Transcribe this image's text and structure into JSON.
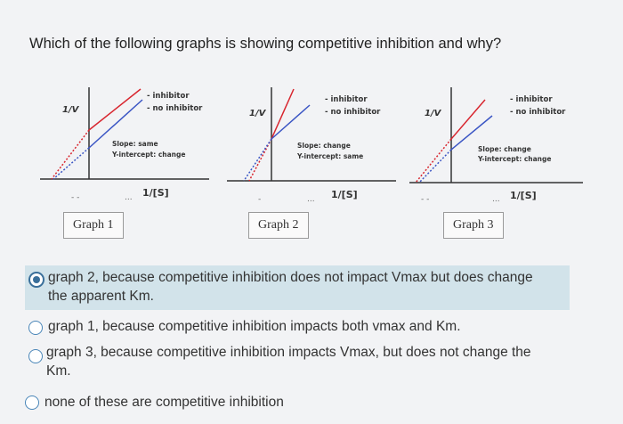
{
  "question": "Which of the following graphs is showing competitive inhibition and why?",
  "colors": {
    "inhibitor": "#d8252e",
    "no_inhibitor": "#3a55c4",
    "selected_bg": "#d2e3ea",
    "radio": "#3a6f9a"
  },
  "graphs": [
    {
      "y_axis": "1/V",
      "legend_inhibitor": "- inhibitor",
      "legend_no_inhibitor": "- no inhibitor",
      "note_line1": "Slope: same",
      "note_line2": "Y-intercept: change",
      "x_axis": "1/[S]",
      "label": "Graph 1"
    },
    {
      "y_axis": "1/V",
      "legend_inhibitor": "- inhibitor",
      "legend_no_inhibitor": "- no inhibitor",
      "note_line1": "Slope: change",
      "note_line2": "Y-intercept: same",
      "x_axis": "1/[S]",
      "label": "Graph 2"
    },
    {
      "y_axis": "1/V",
      "legend_inhibitor": "- inhibitor",
      "legend_no_inhibitor": "- no inhibitor",
      "note_line1": "Slope: change",
      "note_line2": "Y-intercept: change",
      "x_axis": "1/[S]",
      "label": "Graph 3"
    }
  ],
  "options": [
    {
      "line1": "graph 2, because competitive inhibition does not impact Vmax but does change",
      "line2": "the apparent Km.",
      "selected": true
    },
    {
      "line1": "graph 1, because competitive inhibition impacts both vmax and Km.",
      "line2": "",
      "selected": false
    },
    {
      "line1": "graph 3, because competitive inhibition impacts Vmax, but does not change the",
      "line2": "Km.",
      "selected": false
    },
    {
      "line1": "none of these are competitive inhibition",
      "line2": "",
      "selected": false
    }
  ]
}
